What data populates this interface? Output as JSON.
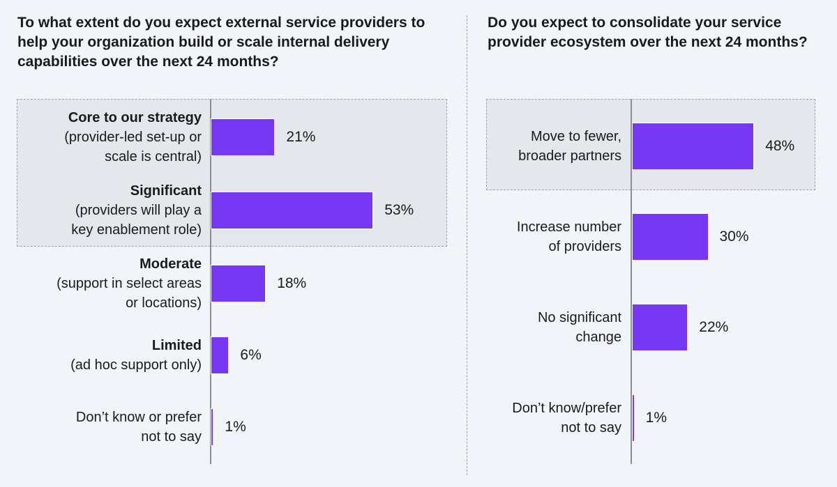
{
  "chart_data": [
    {
      "type": "bar",
      "orientation": "horizontal",
      "title": "To what extent do you expect external service providers to help your organization build or scale internal delivery capabilities over the next 24 months?",
      "categories": [
        {
          "title": "Core to our strategy",
          "subtitle": "(provider-led set-up or\nscale is central)"
        },
        {
          "title": "Significant",
          "subtitle": "(providers will play a\nkey enablement role)"
        },
        {
          "title": "Moderate",
          "subtitle": "(support in select areas\nor locations)"
        },
        {
          "title": "Limited",
          "subtitle": "(ad hoc support only)"
        },
        {
          "title": "",
          "subtitle": "Don’t know or prefer\nnot to say"
        }
      ],
      "values": [
        21,
        53,
        18,
        6,
        1
      ],
      "value_labels": [
        "21%",
        "53%",
        "18%",
        "6%",
        "1%"
      ],
      "unit": "%",
      "highlighted_categories": [
        0,
        1
      ],
      "bar_color": "#7638f2"
    },
    {
      "type": "bar",
      "orientation": "horizontal",
      "title": "Do you expect to consolidate your service provider ecosystem over the next 24 months?",
      "categories": [
        {
          "title": "",
          "subtitle": "Move to fewer,\nbroader partners"
        },
        {
          "title": "",
          "subtitle": "Increase number\nof providers"
        },
        {
          "title": "",
          "subtitle": "No significant\nchange"
        },
        {
          "title": "",
          "subtitle": "Don’t know/prefer\nnot to say"
        }
      ],
      "values": [
        48,
        30,
        22,
        1
      ],
      "value_labels": [
        "48%",
        "30%",
        "22%",
        "1%"
      ],
      "unit": "%",
      "highlighted_categories": [
        0
      ],
      "bar_color": "#7638f2"
    }
  ]
}
